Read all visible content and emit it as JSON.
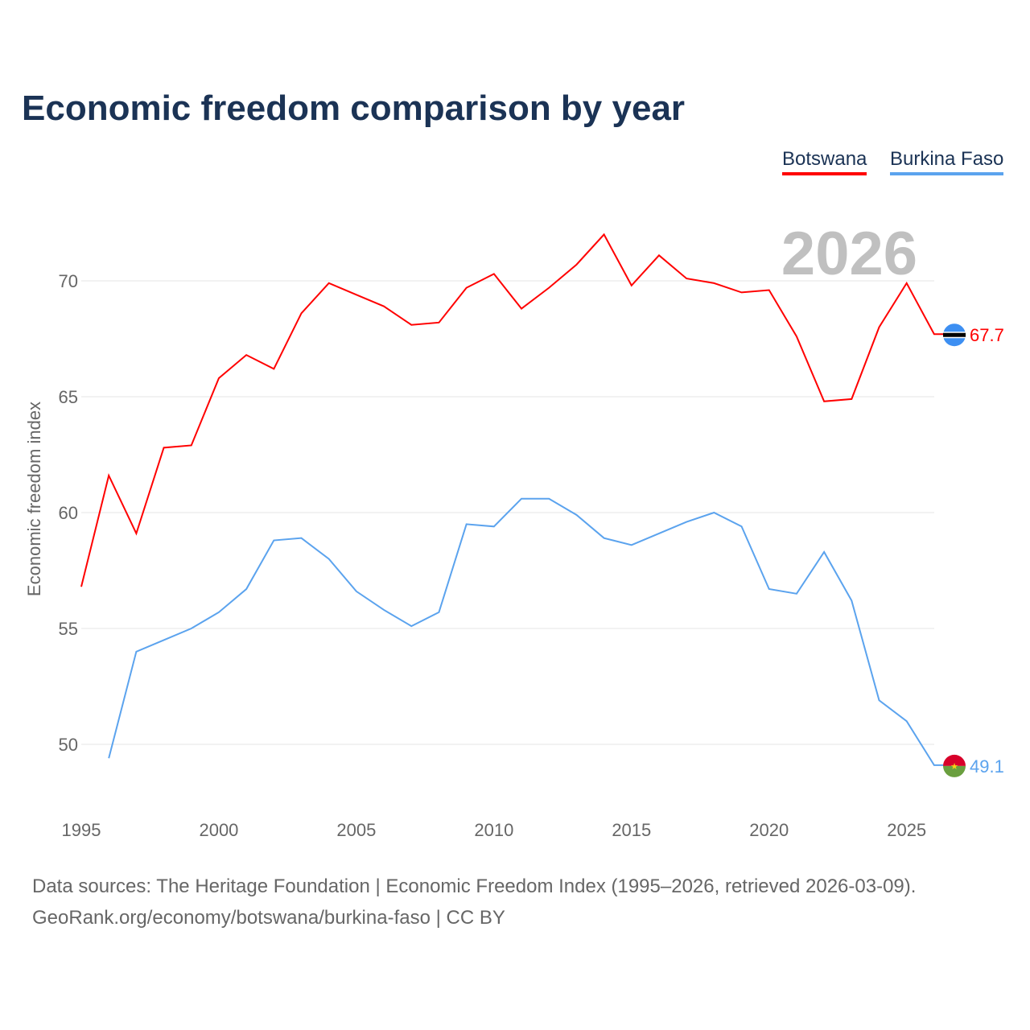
{
  "title": "Economic freedom comparison by year",
  "legend": [
    "Botswana",
    "Burkina Faso"
  ],
  "source_line1": "Data sources: The Heritage Foundation | Economic Freedom Index (1995–2026, retrieved 2026-03-09).",
  "source_line2": "GeoRank.org/economy/botswana/burkina-faso | CC BY",
  "chart_data": {
    "type": "line",
    "title": "Economic freedom comparison by year",
    "ylabel": "Economic freedom index",
    "xlabel": "",
    "year_label": "2026",
    "xlim": [
      1995,
      2026
    ],
    "ylim": [
      48,
      73
    ],
    "xticks": [
      1995,
      2000,
      2005,
      2010,
      2015,
      2020,
      2025
    ],
    "yticks": [
      50,
      55,
      60,
      65,
      70
    ],
    "legend_position": "top-right",
    "series": [
      {
        "name": "Botswana",
        "color": "#ff0000",
        "end_label": "67.7",
        "start_year": 1995,
        "values": [
          56.8,
          61.6,
          59.1,
          62.8,
          62.9,
          65.8,
          66.8,
          66.2,
          68.6,
          69.9,
          69.4,
          68.9,
          68.1,
          68.2,
          69.7,
          70.3,
          68.8,
          69.7,
          70.7,
          72.0,
          69.8,
          71.1,
          70.1,
          69.9,
          69.5,
          69.6,
          67.6,
          64.8,
          64.9,
          68.0,
          69.9,
          67.7
        ]
      },
      {
        "name": "Burkina Faso",
        "color": "#5ba3ee",
        "end_label": "49.1",
        "start_year": 1996,
        "values": [
          49.4,
          54.0,
          54.5,
          55.0,
          55.7,
          56.7,
          58.8,
          58.9,
          58.0,
          56.6,
          55.8,
          55.1,
          55.7,
          59.5,
          59.4,
          60.6,
          60.6,
          59.9,
          58.9,
          58.6,
          59.1,
          59.6,
          60.0,
          59.4,
          56.7,
          56.5,
          58.3,
          56.2,
          51.9,
          51.0,
          49.1
        ]
      }
    ]
  }
}
